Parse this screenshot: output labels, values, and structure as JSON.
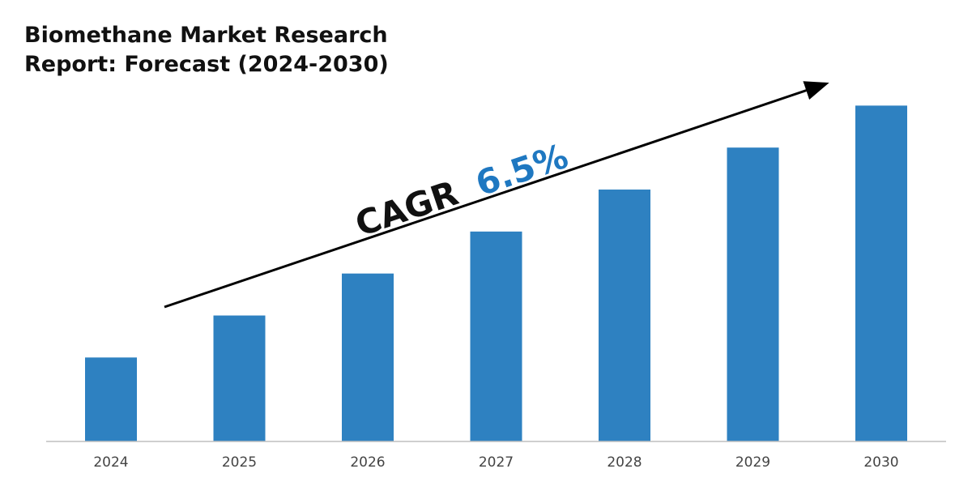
{
  "chart_data": {
    "type": "bar",
    "title": "Biomethane Market Research Report: Forecast (2024-2030)",
    "categories": [
      "2024",
      "2025",
      "2026",
      "2027",
      "2028",
      "2029",
      "2030"
    ],
    "values": [
      20,
      30,
      40,
      50,
      60,
      70,
      80
    ],
    "values_note_scale": "relative (no value axis printed)",
    "ylim": [
      0,
      82
    ],
    "xlabel": "",
    "ylabel": "",
    "grid": false,
    "legend": "none",
    "annotation": {
      "prefix": "CAGR",
      "value": "6.5%"
    },
    "colors": {
      "bar": "#2E81C1",
      "cagr_value": "#1F78C1",
      "text": "#111111",
      "axis": "#bfbfbf"
    }
  }
}
